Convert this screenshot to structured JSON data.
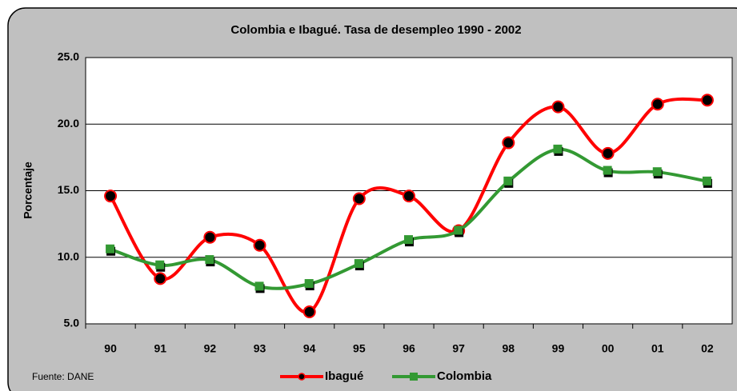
{
  "chart_data": {
    "type": "line",
    "title": "Colombia e Ibagué. Tasa de desempleo 1990 - 2002",
    "y_label": "Porcentaje",
    "source": "Fuente: DANE",
    "categories": [
      "90",
      "91",
      "92",
      "93",
      "94",
      "95",
      "96",
      "97",
      "98",
      "99",
      "00",
      "01",
      "02"
    ],
    "series": [
      {
        "name": "Ibagué",
        "color": "#ff0000",
        "marker": "circle",
        "values": [
          14.6,
          8.4,
          11.5,
          10.9,
          5.9,
          14.4,
          14.6,
          12.0,
          18.6,
          21.3,
          17.8,
          21.5,
          21.8
        ]
      },
      {
        "name": "Colombia",
        "color": "#339933",
        "marker": "square",
        "values": [
          10.6,
          9.4,
          9.8,
          7.8,
          8.0,
          9.5,
          11.3,
          12.0,
          15.7,
          18.1,
          16.5,
          16.4,
          15.7
        ]
      }
    ],
    "ylim": [
      5,
      25
    ],
    "yticks": [
      {
        "value": 5,
        "label": "5.0"
      },
      {
        "value": 10,
        "label": "10.0"
      },
      {
        "value": 15,
        "label": "15.0"
      },
      {
        "value": 20,
        "label": "20.0"
      },
      {
        "value": 25,
        "label": "25.0"
      }
    ],
    "grid": true,
    "smooth": true
  }
}
